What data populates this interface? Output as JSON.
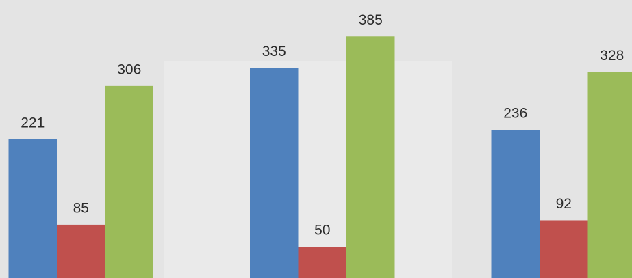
{
  "chart_data": {
    "type": "bar",
    "categories": [
      null,
      null,
      null
    ],
    "series": [
      {
        "color": "#4f81bd",
        "values": [
          221,
          335,
          236
        ]
      },
      {
        "color": "#c0504d",
        "values": [
          85,
          50,
          92
        ]
      },
      {
        "color": "#9bbb59",
        "values": [
          306,
          385,
          328
        ]
      }
    ],
    "ylim": [
      0,
      443
    ]
  }
}
